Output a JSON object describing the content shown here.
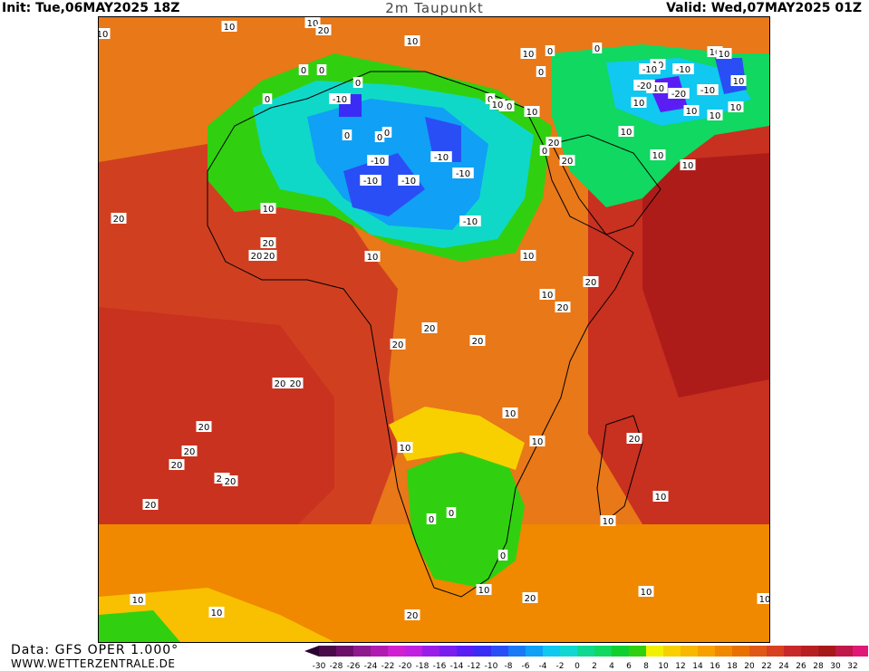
{
  "header": {
    "init": "Init: Tue,06MAY2025 18Z",
    "title": "2m Taupunkt",
    "valid": "Valid: Wed,07MAY2025 01Z"
  },
  "footer": {
    "data_source": "Data: GFS OPER 1.000°",
    "website": "WWW.WETTERZENTRALE.DE"
  },
  "map": {
    "region": "Africa",
    "variable": "2m dew point",
    "contour_labels": [
      {
        "text": "10"
      },
      {
        "text": "10"
      },
      {
        "text": "10"
      },
      {
        "text": "10"
      },
      {
        "text": "10"
      },
      {
        "text": "10"
      },
      {
        "text": "10"
      },
      {
        "text": "10"
      },
      {
        "text": "10"
      },
      {
        "text": "10"
      },
      {
        "text": "10"
      },
      {
        "text": "10"
      },
      {
        "text": "0"
      },
      {
        "text": "0"
      },
      {
        "text": "0"
      },
      {
        "text": "0"
      },
      {
        "text": "0"
      },
      {
        "text": "0"
      },
      {
        "text": "0"
      },
      {
        "text": "0"
      },
      {
        "text": "0"
      },
      {
        "text": "0"
      },
      {
        "text": "0"
      },
      {
        "text": "0"
      },
      {
        "text": "-10"
      },
      {
        "text": "-10"
      },
      {
        "text": "-10"
      },
      {
        "text": "-10"
      },
      {
        "text": "-10"
      },
      {
        "text": "-10"
      },
      {
        "text": "-10"
      },
      {
        "text": "-10"
      },
      {
        "text": "-10"
      },
      {
        "text": "-10"
      },
      {
        "text": "-10"
      },
      {
        "text": "-20"
      },
      {
        "text": "-20"
      },
      {
        "text": "10"
      },
      {
        "text": "10"
      },
      {
        "text": "10"
      },
      {
        "text": "10"
      },
      {
        "text": "20"
      },
      {
        "text": "20"
      },
      {
        "text": "10"
      },
      {
        "text": "10"
      },
      {
        "text": "20"
      },
      {
        "text": "10"
      },
      {
        "text": "20"
      },
      {
        "text": "20"
      },
      {
        "text": "20"
      },
      {
        "text": "20"
      },
      {
        "text": "20"
      },
      {
        "text": "20"
      },
      {
        "text": "20"
      },
      {
        "text": "20"
      },
      {
        "text": "20"
      },
      {
        "text": "20"
      },
      {
        "text": "20"
      },
      {
        "text": "20"
      },
      {
        "text": "20"
      },
      {
        "text": "20"
      },
      {
        "text": "20"
      },
      {
        "text": "20"
      },
      {
        "text": "10"
      },
      {
        "text": "10"
      },
      {
        "text": "10"
      },
      {
        "text": "10"
      },
      {
        "text": "20"
      },
      {
        "text": "10"
      },
      {
        "text": "0"
      },
      {
        "text": "0"
      },
      {
        "text": "0"
      },
      {
        "text": "10"
      },
      {
        "text": "20"
      },
      {
        "text": "10"
      },
      {
        "text": "10"
      },
      {
        "text": "10"
      },
      {
        "text": "10"
      },
      {
        "text": "10"
      },
      {
        "text": "20"
      },
      {
        "text": "20"
      },
      {
        "text": "10"
      },
      {
        "text": "10"
      },
      {
        "text": "10"
      }
    ]
  },
  "colorbar": {
    "ticks": [
      "-30",
      "-28",
      "-26",
      "-24",
      "-22",
      "-20",
      "-18",
      "-16",
      "-14",
      "-12",
      "-10",
      "-8",
      "-6",
      "-4",
      "-2",
      "0",
      "2",
      "4",
      "6",
      "8",
      "10",
      "12",
      "14",
      "16",
      "18",
      "20",
      "22",
      "24",
      "26",
      "28",
      "30",
      "32"
    ],
    "colors": [
      "#4a0a4a",
      "#6b0f6b",
      "#8e1a8e",
      "#b01cb0",
      "#d020d0",
      "#c020e0",
      "#9a1ee8",
      "#7a1ef0",
      "#5a1ef5",
      "#3a2cf5",
      "#2a4ef5",
      "#1a7af5",
      "#10a0f5",
      "#10c8f0",
      "#10d8d0",
      "#10d890",
      "#10d860",
      "#10d030",
      "#30d010",
      "#f0f000",
      "#f8d000",
      "#f8b800",
      "#f8a000",
      "#f08800",
      "#e87000",
      "#e05818",
      "#d84020",
      "#c82828",
      "#b82020",
      "#a81818",
      "#c01848",
      "#e01878"
    ],
    "left_arrow_color": "#2a0030",
    "right_arrow_color": "#f040c0"
  }
}
